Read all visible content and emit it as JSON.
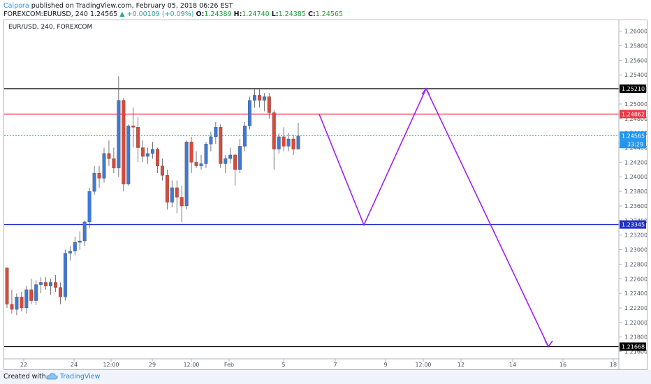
{
  "header": {
    "author": "Caipora",
    "published": "published on TradingView.com, February 05, 2018 06:26 EST",
    "symbol": "FOREXCOM:EURUSD, 240",
    "last": "1.24565",
    "change": "+0.00109 (+0.09%)",
    "o_label": "O:",
    "o_val": "1.24389",
    "h_label": "H:",
    "h_val": "1.24740",
    "l_label": "L:",
    "l_val": "1.24385",
    "c_label": "C:",
    "c_val": "1.24565"
  },
  "chart_data": {
    "type": "candlestick",
    "title": "EUR/USD, 240, FOREXCOM",
    "ylim": [
      1.215,
      1.2615
    ],
    "y_ticks": [
      "1.26000",
      "1.25800",
      "1.25600",
      "1.25400",
      "1.25200",
      "1.25000",
      "1.24800",
      "1.24600",
      "1.24400",
      "1.24200",
      "1.24000",
      "1.23800",
      "1.23600",
      "1.23400",
      "1.23200",
      "1.23000",
      "1.22800",
      "1.22600",
      "1.22400",
      "1.22200",
      "1.22000",
      "1.21800",
      "1.21600"
    ],
    "x_ticks": [
      "22",
      "24",
      "12:00",
      "29",
      "12:00",
      "Feb",
      "5",
      "7",
      "9",
      "12:00",
      "12",
      "14",
      "16",
      "18"
    ],
    "candles": [
      [
        1.2275,
        1.2275,
        1.222,
        1.2225
      ],
      [
        1.2225,
        1.2245,
        1.2212,
        1.2218
      ],
      [
        1.2218,
        1.224,
        1.221,
        1.2235
      ],
      [
        1.2235,
        1.2242,
        1.2215,
        1.222
      ],
      [
        1.222,
        1.225,
        1.2212,
        1.2245
      ],
      [
        1.2245,
        1.226,
        1.2225,
        1.223
      ],
      [
        1.223,
        1.2258,
        1.2224,
        1.2252
      ],
      [
        1.2252,
        1.2262,
        1.224,
        1.2255
      ],
      [
        1.2255,
        1.2262,
        1.2245,
        1.225
      ],
      [
        1.225,
        1.226,
        1.2238,
        1.2255
      ],
      [
        1.2255,
        1.2265,
        1.2242,
        1.2248
      ],
      [
        1.2248,
        1.2255,
        1.2225,
        1.2235
      ],
      [
        1.2235,
        1.23,
        1.223,
        1.2295
      ],
      [
        1.2295,
        1.2305,
        1.2285,
        1.2298
      ],
      [
        1.2298,
        1.2318,
        1.2292,
        1.231
      ],
      [
        1.231,
        1.2325,
        1.23,
        1.2312
      ],
      [
        1.2312,
        1.234,
        1.2305,
        1.2338
      ],
      [
        1.2338,
        1.2385,
        1.233,
        1.238
      ],
      [
        1.238,
        1.2415,
        1.2375,
        1.2405
      ],
      [
        1.2405,
        1.2415,
        1.2385,
        1.2398
      ],
      [
        1.2398,
        1.244,
        1.2392,
        1.2432
      ],
      [
        1.2432,
        1.245,
        1.2415,
        1.2425
      ],
      [
        1.2425,
        1.244,
        1.2405,
        1.2412
      ],
      [
        1.2412,
        1.2538,
        1.24,
        1.2505
      ],
      [
        1.2505,
        1.2508,
        1.238,
        1.239
      ],
      [
        1.239,
        1.2472,
        1.2388,
        1.247
      ],
      [
        1.247,
        1.2495,
        1.244,
        1.2468
      ],
      [
        1.2468,
        1.2482,
        1.242,
        1.244
      ],
      [
        1.244,
        1.245,
        1.242,
        1.2428
      ],
      [
        1.2428,
        1.244,
        1.2418,
        1.2432
      ],
      [
        1.2432,
        1.2448,
        1.2425,
        1.2438
      ],
      [
        1.2438,
        1.244,
        1.2405,
        1.2415
      ],
      [
        1.2415,
        1.2425,
        1.2395,
        1.2402
      ],
      [
        1.2402,
        1.241,
        1.2355,
        1.2365
      ],
      [
        1.2365,
        1.2395,
        1.2358,
        1.2385
      ],
      [
        1.2385,
        1.2395,
        1.235,
        1.2372
      ],
      [
        1.2372,
        1.2388,
        1.2338,
        1.236
      ],
      [
        1.236,
        1.245,
        1.2355,
        1.2448
      ],
      [
        1.2448,
        1.2455,
        1.2405,
        1.242
      ],
      [
        1.242,
        1.2435,
        1.2412,
        1.2415
      ],
      [
        1.2415,
        1.243,
        1.241,
        1.2418
      ],
      [
        1.2418,
        1.2448,
        1.2412,
        1.2445
      ],
      [
        1.2445,
        1.2462,
        1.2435,
        1.2455
      ],
      [
        1.2455,
        1.2475,
        1.2445,
        1.2468
      ],
      [
        1.2468,
        1.2472,
        1.2412,
        1.2418
      ],
      [
        1.2418,
        1.243,
        1.2405,
        1.2425
      ],
      [
        1.2425,
        1.244,
        1.2418,
        1.243
      ],
      [
        1.243,
        1.2432,
        1.2388,
        1.241
      ],
      [
        1.241,
        1.2452,
        1.2405,
        1.2442
      ],
      [
        1.2442,
        1.2475,
        1.2435,
        1.247
      ],
      [
        1.247,
        1.251,
        1.2465,
        1.2505
      ],
      [
        1.2505,
        1.252,
        1.2495,
        1.2512
      ],
      [
        1.2512,
        1.252,
        1.2495,
        1.2505
      ],
      [
        1.2505,
        1.2515,
        1.249,
        1.251
      ],
      [
        1.251,
        1.2515,
        1.248,
        1.2488
      ],
      [
        1.2488,
        1.2492,
        1.241,
        1.2438
      ],
      [
        1.2438,
        1.246,
        1.2432,
        1.2455
      ],
      [
        1.2455,
        1.2468,
        1.2435,
        1.2442
      ],
      [
        1.2442,
        1.246,
        1.2435,
        1.2452
      ],
      [
        1.2452,
        1.2458,
        1.243,
        1.2438
      ],
      [
        1.2438,
        1.2474,
        1.2438,
        1.2456
      ]
    ],
    "levels": [
      {
        "price": 1.2521,
        "label": "1.25210",
        "color": "#000000",
        "style": "solid"
      },
      {
        "price": 1.24862,
        "label": "1.24862",
        "color": "#f23645",
        "style": "solid"
      },
      {
        "price": 1.24565,
        "label": "1.24565",
        "color": "#2196f3",
        "style": "dotted"
      },
      {
        "price": 1.23345,
        "label": "1.23345",
        "color": "#2130c8",
        "style": "solid"
      },
      {
        "price": 1.21668,
        "label": "1.21668",
        "color": "#000000",
        "style": "solid"
      }
    ],
    "countdown": "33:29",
    "projection_color": "#a020f0",
    "projection": [
      [
        1.2486,
        "start"
      ],
      [
        1.2334,
        "low"
      ],
      [
        1.2521,
        "high"
      ],
      [
        1.2167,
        "target"
      ]
    ]
  },
  "footer": {
    "created": "Created with",
    "brand": "TradingView"
  },
  "colors": {
    "up": "#3b7ad9",
    "down": "#d84a3a",
    "wick": "#555555"
  }
}
